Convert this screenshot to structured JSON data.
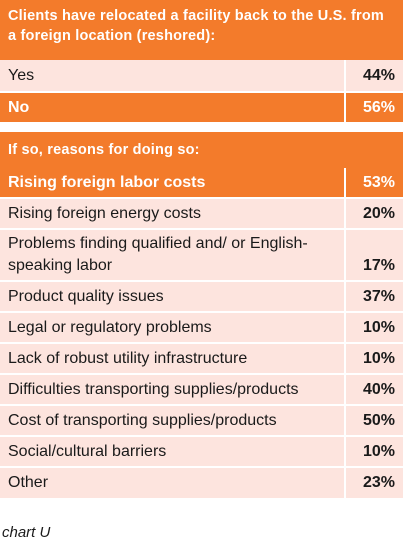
{
  "section1": {
    "title": "Clients have relocated a facility back to the U.S. from a foreign location (reshored):",
    "rows": [
      {
        "label": "Yes",
        "value": "44%",
        "highlight": false
      },
      {
        "label": "No",
        "value": "56%",
        "highlight": true
      }
    ]
  },
  "section2": {
    "title": "If so, reasons for doing so:",
    "rows": [
      {
        "label": "Rising foreign labor costs",
        "value": "53%",
        "highlight": true
      },
      {
        "label": "Rising foreign energy costs",
        "value": "20%",
        "highlight": false
      },
      {
        "label": "Problems finding qualified and/ or English-speaking labor",
        "value": "17%",
        "highlight": false
      },
      {
        "label": "Product quality issues",
        "value": "37%",
        "highlight": false
      },
      {
        "label": "Legal or regulatory problems",
        "value": "10%",
        "highlight": false
      },
      {
        "label": "Lack of robust utility infrastructure",
        "value": "10%",
        "highlight": false
      },
      {
        "label": "Difficulties transporting supplies/products",
        "value": "40%",
        "highlight": false
      },
      {
        "label": "Cost of transporting supplies/products",
        "value": "50%",
        "highlight": false
      },
      {
        "label": "Social/cultural barriers",
        "value": "10%",
        "highlight": false
      },
      {
        "label": "Other",
        "value": "23%",
        "highlight": false
      }
    ]
  },
  "caption": "chart U",
  "colors": {
    "accent": "#f37b2b",
    "row_background": "#fde4de"
  }
}
